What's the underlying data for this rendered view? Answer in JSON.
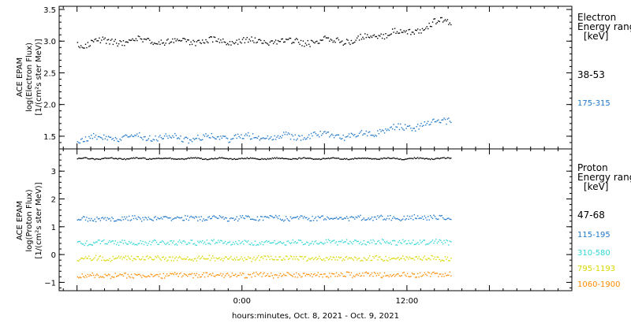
{
  "xlabel": "hours:minutes, Oct.  8, 2021 - Oct.  9, 2021",
  "chart_data": [
    {
      "type": "scatter",
      "panel": "electron",
      "ylabel_lines": [
        "ACE EPAM",
        "log(Electron Flux)",
        "[1/(cm²s ster MeV)]"
      ],
      "legend_title": [
        "Electron",
        "Energy ranges",
        "[keV]"
      ],
      "ylim": [
        1.3,
        3.55
      ],
      "yticks": [
        1.5,
        2.0,
        2.5,
        3.0,
        3.5
      ],
      "ytick_labels": [
        "1.5",
        "2.0",
        "2.5",
        "3.0",
        "3.5"
      ],
      "series": [
        {
          "name": "38-53",
          "color": "#000000",
          "x": [
            -12,
            -8,
            -4,
            0,
            4,
            6,
            8,
            10,
            11,
            12,
            13,
            14,
            15.2
          ],
          "y": [
            2.97,
            3.02,
            3.0,
            3.01,
            2.99,
            3.01,
            3.03,
            3.1,
            3.16,
            3.14,
            3.2,
            3.3,
            3.32
          ]
        },
        {
          "name": "175-315",
          "color": "#1f77c8",
          "x": [
            -12,
            -8,
            -4,
            0,
            4,
            6,
            8,
            10,
            12,
            14,
            15.2
          ],
          "y": [
            1.47,
            1.5,
            1.48,
            1.49,
            1.5,
            1.52,
            1.5,
            1.6,
            1.65,
            1.72,
            1.78
          ]
        }
      ]
    },
    {
      "type": "scatter",
      "panel": "proton",
      "ylabel_lines": [
        "ACE EPAM",
        "log(Proton Flux)",
        "[1/(cm²s ster MeV)]"
      ],
      "legend_title": [
        "Proton",
        "Energy ranges",
        "[keV]"
      ],
      "ylim": [
        -1.3,
        3.8
      ],
      "yticks": [
        -1,
        0,
        1,
        2,
        3
      ],
      "ytick_labels": [
        "−1",
        "0",
        "1",
        "2",
        "3"
      ],
      "series": [
        {
          "name": "47-68",
          "color": "#000000",
          "x": [
            -12,
            0,
            15.2
          ],
          "y": [
            3.47,
            3.47,
            3.47
          ]
        },
        {
          "name": "115-195",
          "color": "#1f77c8",
          "x": [
            -12,
            -4,
            0,
            8,
            15.2
          ],
          "y": [
            1.3,
            1.32,
            1.32,
            1.33,
            1.35
          ]
        },
        {
          "name": "310-580",
          "color": "#33d6d6",
          "x": [
            -12,
            0,
            15.2
          ],
          "y": [
            0.45,
            0.45,
            0.47
          ]
        },
        {
          "name": "795-1193",
          "color": "#d8d800",
          "x": [
            -12,
            0,
            15.2
          ],
          "y": [
            -0.12,
            -0.12,
            -0.12
          ]
        },
        {
          "name": "1060-1900",
          "color": "#ff8c00",
          "x": [
            -12,
            0,
            15.2
          ],
          "y": [
            -0.75,
            -0.72,
            -0.7
          ]
        }
      ]
    }
  ],
  "x_axis": {
    "xlim": [
      -13.3,
      24
    ],
    "ticks": [
      0,
      12
    ],
    "tick_labels": [
      "0:00",
      "12:00"
    ]
  }
}
